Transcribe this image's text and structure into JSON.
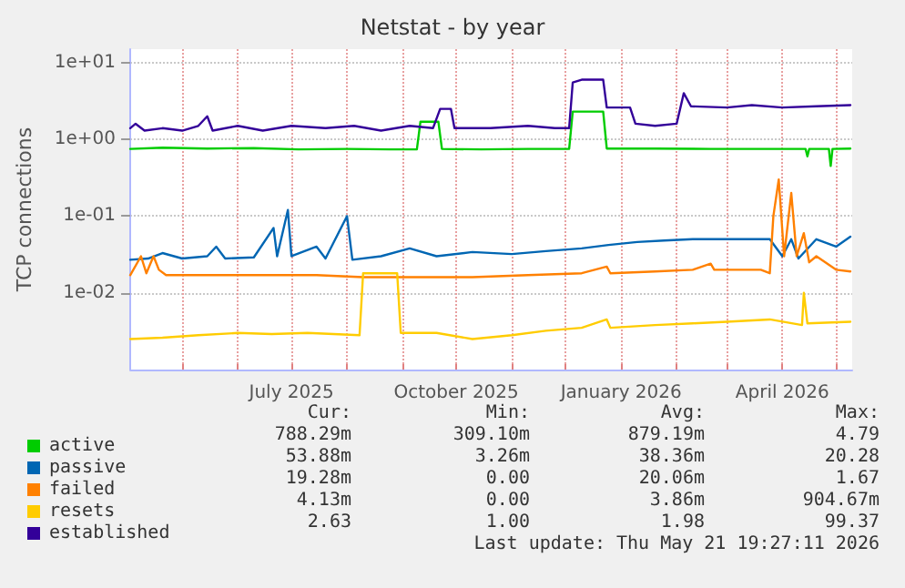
{
  "chart_data": {
    "type": "line",
    "title": "Netstat - by year",
    "ylabel": "TCP connections",
    "log": "y",
    "grid": true,
    "legend": "bottom left",
    "marker": "none",
    "line_style": "solid",
    "xlim": [
      "2025-04-02",
      "2026-05-10"
    ],
    "xticks": [
      {
        "value": "2025-05-01",
        "label": null
      },
      {
        "value": "2025-06-01",
        "label": null
      },
      {
        "value": "2025-07-01",
        "label": "July 2025"
      },
      {
        "value": "2025-08-01",
        "label": null
      },
      {
        "value": "2025-09-01",
        "label": null
      },
      {
        "value": "2025-10-01",
        "label": "October 2025"
      },
      {
        "value": "2025-11-01",
        "label": null
      },
      {
        "value": "2025-12-01",
        "label": null
      },
      {
        "value": "2026-01-01",
        "label": "January 2026"
      },
      {
        "value": "2026-02-01",
        "label": null
      },
      {
        "value": "2026-03-01",
        "label": null
      },
      {
        "value": "2026-04-01",
        "label": "April 2026"
      },
      {
        "value": "2026-05-01",
        "label": null
      }
    ],
    "ylim": [
      0.001,
      15
    ],
    "yticks": [
      {
        "value": 0.01,
        "label": "1e-02"
      },
      {
        "value": 0.1,
        "label": "1e-01"
      },
      {
        "value": 1,
        "label": "1e+00"
      },
      {
        "value": 10,
        "label": "1e+01"
      }
    ],
    "series": [
      {
        "name": "active",
        "color": "#00cc00",
        "x": [
          "2025-04-02",
          "2025-04-20",
          "2025-05-15",
          "2025-06-10",
          "2025-07-05",
          "2025-08-01",
          "2025-08-25",
          "2025-09-09",
          "2025-09-11",
          "2025-09-21",
          "2025-09-23",
          "2025-10-15",
          "2025-11-10",
          "2025-12-03",
          "2025-12-05",
          "2025-12-22",
          "2025-12-24",
          "2026-01-20",
          "2026-02-20",
          "2026-03-20",
          "2026-04-14",
          "2026-04-15",
          "2026-04-16",
          "2026-04-27",
          "2026-04-28",
          "2026-04-29",
          "2026-05-09"
        ],
        "values": [
          0.75,
          0.78,
          0.76,
          0.77,
          0.74,
          0.75,
          0.74,
          0.74,
          1.7,
          1.7,
          0.75,
          0.74,
          0.75,
          0.75,
          2.3,
          2.3,
          0.76,
          0.76,
          0.75,
          0.75,
          0.75,
          0.6,
          0.75,
          0.75,
          0.45,
          0.75,
          0.76
        ]
      },
      {
        "name": "passive",
        "color": "#0066b3",
        "x": [
          "2025-04-02",
          "2025-04-12",
          "2025-04-20",
          "2025-05-01",
          "2025-05-15",
          "2025-05-20",
          "2025-05-25",
          "2025-06-10",
          "2025-06-21",
          "2025-06-23",
          "2025-06-29",
          "2025-07-01",
          "2025-07-15",
          "2025-07-20",
          "2025-08-01",
          "2025-08-04",
          "2025-08-20",
          "2025-09-05",
          "2025-09-20",
          "2025-10-10",
          "2025-11-01",
          "2025-11-20",
          "2025-12-10",
          "2025-12-25",
          "2026-01-10",
          "2026-01-25",
          "2026-02-10",
          "2026-03-01",
          "2026-03-25",
          "2026-04-01",
          "2026-04-06",
          "2026-04-10",
          "2026-04-20",
          "2026-05-01",
          "2026-05-09"
        ],
        "values": [
          0.027,
          0.028,
          0.033,
          0.028,
          0.03,
          0.04,
          0.028,
          0.029,
          0.07,
          0.03,
          0.12,
          0.03,
          0.04,
          0.028,
          0.1,
          0.027,
          0.03,
          0.038,
          0.03,
          0.034,
          0.032,
          0.035,
          0.038,
          0.042,
          0.046,
          0.048,
          0.05,
          0.05,
          0.05,
          0.03,
          0.05,
          0.028,
          0.05,
          0.04,
          0.054
        ]
      },
      {
        "name": "failed",
        "color": "#ff8000",
        "x": [
          "2025-04-02",
          "2025-04-08",
          "2025-04-11",
          "2025-04-15",
          "2025-04-18",
          "2025-04-22",
          "2025-05-20",
          "2025-06-20",
          "2025-07-15",
          "2025-08-10",
          "2025-09-10",
          "2025-10-10",
          "2025-11-10",
          "2025-12-10",
          "2025-12-24",
          "2025-12-26",
          "2026-01-20",
          "2026-02-10",
          "2026-02-20",
          "2026-02-22",
          "2026-03-20",
          "2026-03-25",
          "2026-03-27",
          "2026-03-30",
          "2026-04-02",
          "2026-04-06",
          "2026-04-09",
          "2026-04-13",
          "2026-04-16",
          "2026-04-20",
          "2026-05-01",
          "2026-05-09"
        ],
        "values": [
          0.017,
          0.03,
          0.018,
          0.03,
          0.02,
          0.017,
          0.017,
          0.017,
          0.017,
          0.016,
          0.016,
          0.016,
          0.017,
          0.018,
          0.022,
          0.018,
          0.019,
          0.02,
          0.024,
          0.02,
          0.02,
          0.018,
          0.1,
          0.3,
          0.03,
          0.2,
          0.03,
          0.06,
          0.025,
          0.03,
          0.02,
          0.019
        ]
      },
      {
        "name": "resets",
        "color": "#ffcc00",
        "x": [
          "2025-04-02",
          "2025-04-20",
          "2025-05-10",
          "2025-06-01",
          "2025-06-20",
          "2025-07-10",
          "2025-08-08",
          "2025-08-10",
          "2025-08-29",
          "2025-08-31",
          "2025-09-20",
          "2025-10-10",
          "2025-11-01",
          "2025-11-20",
          "2025-12-10",
          "2025-12-24",
          "2025-12-26",
          "2026-01-20",
          "2026-02-10",
          "2026-03-01",
          "2026-03-25",
          "2026-04-12",
          "2026-04-13",
          "2026-04-15",
          "2026-05-09"
        ],
        "values": [
          0.0025,
          0.0026,
          0.0028,
          0.003,
          0.0029,
          0.003,
          0.0028,
          0.018,
          0.018,
          0.003,
          0.003,
          0.0025,
          0.0028,
          0.0032,
          0.0035,
          0.0045,
          0.0035,
          0.0038,
          0.004,
          0.0042,
          0.0045,
          0.0038,
          0.01,
          0.004,
          0.0042
        ]
      },
      {
        "name": "established",
        "color": "#330099",
        "x": [
          "2025-04-02",
          "2025-04-05",
          "2025-04-10",
          "2025-04-20",
          "2025-05-01",
          "2025-05-10",
          "2025-05-15",
          "2025-05-18",
          "2025-06-01",
          "2025-06-15",
          "2025-07-01",
          "2025-07-20",
          "2025-08-05",
          "2025-08-20",
          "2025-09-05",
          "2025-09-18",
          "2025-09-22",
          "2025-09-28",
          "2025-09-30",
          "2025-10-20",
          "2025-11-10",
          "2025-11-25",
          "2025-12-03",
          "2025-12-05",
          "2025-12-10",
          "2025-12-22",
          "2025-12-24",
          "2026-01-06",
          "2026-01-09",
          "2026-01-20",
          "2026-02-01",
          "2026-02-05",
          "2026-02-09",
          "2026-03-01",
          "2026-03-15",
          "2026-04-01",
          "2026-04-20",
          "2026-05-09"
        ],
        "values": [
          1.4,
          1.6,
          1.3,
          1.4,
          1.3,
          1.5,
          2.0,
          1.3,
          1.5,
          1.3,
          1.5,
          1.4,
          1.5,
          1.3,
          1.5,
          1.4,
          2.5,
          2.5,
          1.4,
          1.4,
          1.5,
          1.4,
          1.4,
          5.5,
          6.0,
          6.0,
          2.6,
          2.6,
          1.6,
          1.5,
          1.6,
          4.0,
          2.7,
          2.6,
          2.8,
          2.6,
          2.7,
          2.8
        ]
      }
    ],
    "annotations": [
      "Cur:",
      "Min:",
      "Avg:",
      "Max:",
      "788.29m",
      "309.10m",
      "879.19m",
      "4.79",
      "53.88m",
      "3.26m",
      "38.36m",
      "20.28",
      "19.28m",
      "0.00",
      "20.06m",
      "1.67",
      "4.13m",
      "0.00",
      "3.86m",
      "904.67m",
      "2.63",
      "1.00",
      "1.98",
      "99.37",
      "Last update: Thu May 21 19:27:11 2026"
    ]
  }
}
